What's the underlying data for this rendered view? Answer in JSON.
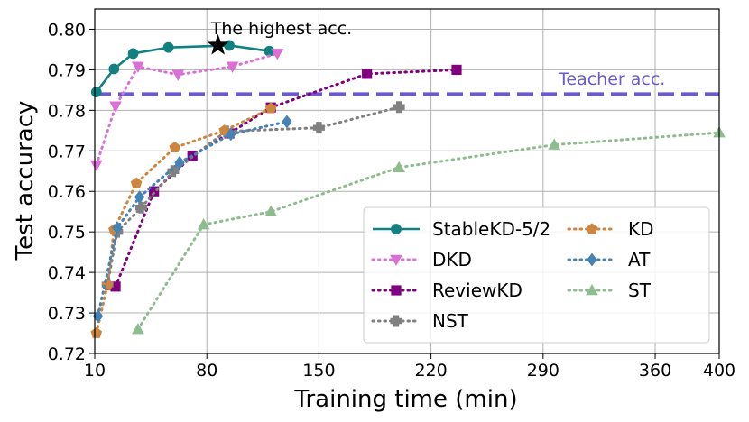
{
  "chart_data": {
    "type": "line",
    "title": "",
    "xlabel": "Training time (min)",
    "ylabel": "Test accuracy",
    "xlim": [
      10,
      400
    ],
    "ylim": [
      0.72,
      0.805
    ],
    "xticks": [
      10,
      80,
      150,
      220,
      290,
      360,
      400
    ],
    "yticks": [
      0.72,
      0.73,
      0.74,
      0.75,
      0.76,
      0.77,
      0.78,
      0.79,
      0.8
    ],
    "ytick_labels": [
      "0.72",
      "0.73",
      "0.74",
      "0.75",
      "0.76",
      "0.77",
      "0.78",
      "0.79",
      "0.80"
    ],
    "grid": true,
    "legend_position": "lower-right",
    "teacher": {
      "label": "Teacher acc.",
      "value": 0.784,
      "color": "#6a5acd"
    },
    "highest": {
      "label": "The highest acc.",
      "x": 87,
      "y": 0.796
    },
    "series": [
      {
        "name": "StableKD-5/2",
        "color": "#138080",
        "marker": "circle",
        "dash": "solid",
        "x": [
          11,
          22,
          34,
          56,
          94,
          119
        ],
        "y": [
          0.7845,
          0.7902,
          0.794,
          0.7955,
          0.796,
          0.7946
        ]
      },
      {
        "name": "DKD",
        "color": "#da70d6",
        "marker": "triangle-down",
        "dash": "dotted",
        "x": [
          11,
          23,
          37,
          62,
          96,
          124
        ],
        "y": [
          0.7665,
          0.781,
          0.7908,
          0.7888,
          0.7908,
          0.794
        ]
      },
      {
        "name": "ReviewKD",
        "color": "#800080",
        "marker": "square",
        "dash": "dotted",
        "x": [
          23,
          47,
          71,
          94,
          120,
          180,
          236
        ],
        "y": [
          0.7365,
          0.76,
          0.7687,
          0.7743,
          0.7807,
          0.789,
          0.79
        ]
      },
      {
        "name": "NST",
        "color": "#808080",
        "marker": "plus",
        "dash": "dotted",
        "x": [
          18,
          24,
          39,
          59,
          92,
          150,
          200
        ],
        "y": [
          0.737,
          0.75,
          0.756,
          0.765,
          0.7748,
          0.7757,
          0.7808
        ]
      },
      {
        "name": "KD",
        "color": "#cd853f",
        "marker": "pentagon",
        "dash": "dotted",
        "x": [
          11,
          18,
          22,
          36,
          60,
          91,
          120
        ],
        "y": [
          0.725,
          0.737,
          0.7505,
          0.762,
          0.7708,
          0.775,
          0.7805
        ]
      },
      {
        "name": "AT",
        "color": "#4682b4",
        "marker": "diamond",
        "dash": "dotted",
        "x": [
          12,
          24,
          38,
          63,
          95,
          130
        ],
        "y": [
          0.7292,
          0.751,
          0.7586,
          0.7671,
          0.7741,
          0.7772
        ]
      },
      {
        "name": "ST",
        "color": "#8fbc8f",
        "marker": "triangle-up",
        "dash": "dotted",
        "x": [
          37,
          78,
          120,
          200,
          297,
          400
        ],
        "y": [
          0.726,
          0.7518,
          0.755,
          0.7659,
          0.7715,
          0.7745
        ]
      }
    ]
  }
}
